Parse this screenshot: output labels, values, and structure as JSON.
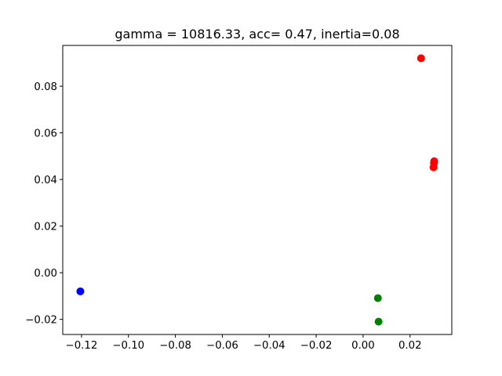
{
  "chart_data": {
    "type": "scatter",
    "title": "gamma = 10816.33, acc= 0.47, inertia=0.08",
    "xlabel": "",
    "ylabel": "",
    "xlim": [
      -0.128,
      0.0378
    ],
    "ylim": [
      -0.0265,
      0.0975
    ],
    "grid": false,
    "xticks": [
      {
        "value": -0.12,
        "label": "−0.12"
      },
      {
        "value": -0.1,
        "label": "−0.10"
      },
      {
        "value": -0.08,
        "label": "−0.08"
      },
      {
        "value": -0.06,
        "label": "−0.06"
      },
      {
        "value": -0.04,
        "label": "−0.04"
      },
      {
        "value": -0.02,
        "label": "−0.02"
      },
      {
        "value": 0.0,
        "label": "0.00"
      },
      {
        "value": 0.02,
        "label": "0.02"
      }
    ],
    "yticks": [
      {
        "value": -0.02,
        "label": "−0.02"
      },
      {
        "value": 0.0,
        "label": "0.00"
      },
      {
        "value": 0.02,
        "label": "0.02"
      },
      {
        "value": 0.04,
        "label": "0.04"
      },
      {
        "value": 0.06,
        "label": "0.06"
      },
      {
        "value": 0.08,
        "label": "0.08"
      }
    ],
    "points": [
      {
        "x": -0.1205,
        "y": -0.008,
        "color": "#0000ff"
      },
      {
        "x": 0.0063,
        "y": -0.0109,
        "color": "#008000"
      },
      {
        "x": 0.0066,
        "y": -0.021,
        "color": "#008000"
      },
      {
        "x": 0.0247,
        "y": 0.092,
        "color": "#ff0000"
      },
      {
        "x": 0.0303,
        "y": 0.0478,
        "color": "#ff0000"
      },
      {
        "x": 0.0302,
        "y": 0.047,
        "color": "#ff0000"
      },
      {
        "x": 0.03,
        "y": 0.0452,
        "color": "#ff0000"
      }
    ]
  }
}
